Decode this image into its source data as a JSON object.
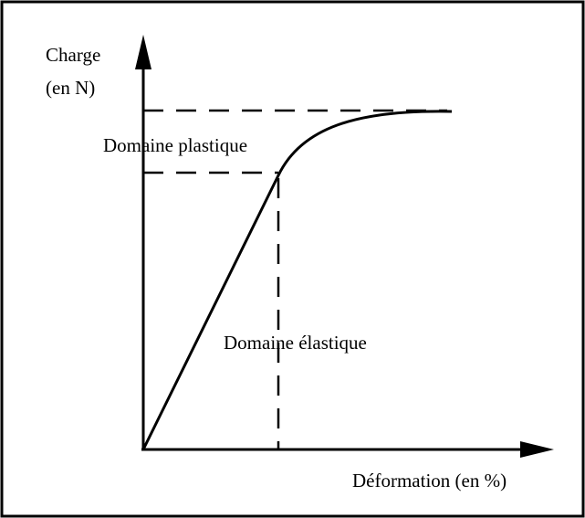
{
  "diagram": {
    "y_axis_label": [
      "Charge",
      "(en N)"
    ],
    "x_axis_label": "Déformation (en %)",
    "regions": {
      "plastic": "Domaine plastique",
      "elastic": "Domaine élastique"
    }
  }
}
